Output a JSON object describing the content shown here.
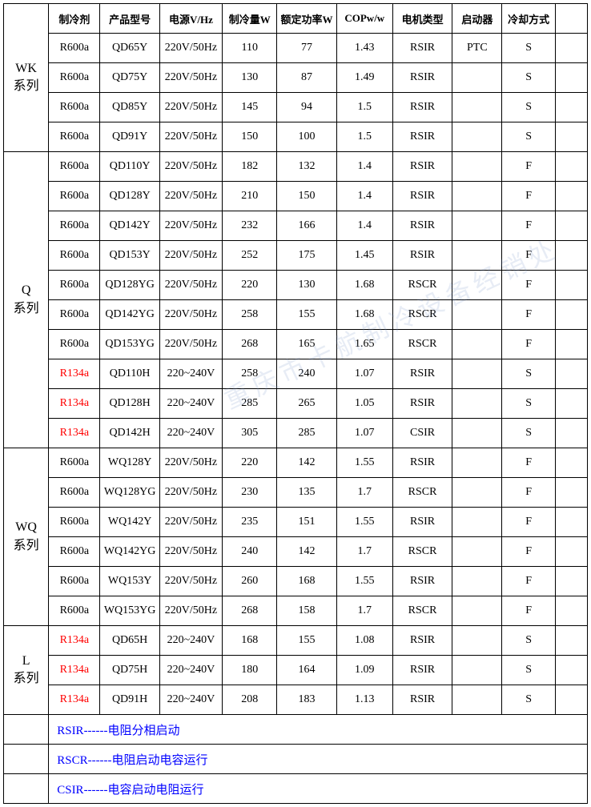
{
  "watermark": "重庆市卡航制冷设备经销处",
  "headers": [
    "",
    "制冷剂",
    "产品型号",
    "电源V/Hz",
    "制冷量W",
    "额定功率W",
    "COPw/w",
    "电机类型",
    "启动器",
    "冷却方式",
    ""
  ],
  "colors": {
    "r134a": "#ff0000",
    "legend": "#0000ff"
  },
  "groups": [
    {
      "series": "WK\n系列",
      "span": 5,
      "header_in_group": true,
      "rows": [
        {
          "refrig": "R600a",
          "model": "QD65Y",
          "power": "220V/50Hz",
          "cap": "110",
          "rated": "77",
          "cop": "1.43",
          "motor": "RSIR",
          "starter": "PTC",
          "cool": "S"
        },
        {
          "refrig": "R600a",
          "model": "QD75Y",
          "power": "220V/50Hz",
          "cap": "130",
          "rated": "87",
          "cop": "1.49",
          "motor": "RSIR",
          "starter": "",
          "cool": "S"
        },
        {
          "refrig": "R600a",
          "model": "QD85Y",
          "power": "220V/50Hz",
          "cap": "145",
          "rated": "94",
          "cop": "1.5",
          "motor": "RSIR",
          "starter": "",
          "cool": "S"
        },
        {
          "refrig": "R600a",
          "model": "QD91Y",
          "power": "220V/50Hz",
          "cap": "150",
          "rated": "100",
          "cop": "1.5",
          "motor": "RSIR",
          "starter": "",
          "cool": "S"
        }
      ]
    },
    {
      "series": "Q\n系列",
      "span": 10,
      "header_in_group": false,
      "rows": [
        {
          "refrig": "R600a",
          "model": "QD110Y",
          "power": "220V/50Hz",
          "cap": "182",
          "rated": "132",
          "cop": "1.4",
          "motor": "RSIR",
          "starter": "",
          "cool": "F"
        },
        {
          "refrig": "R600a",
          "model": "QD128Y",
          "power": "220V/50Hz",
          "cap": "210",
          "rated": "150",
          "cop": "1.4",
          "motor": "RSIR",
          "starter": "",
          "cool": "F"
        },
        {
          "refrig": "R600a",
          "model": "QD142Y",
          "power": "220V/50Hz",
          "cap": "232",
          "rated": "166",
          "cop": "1.4",
          "motor": "RSIR",
          "starter": "",
          "cool": "F"
        },
        {
          "refrig": "R600a",
          "model": "QD153Y",
          "power": "220V/50Hz",
          "cap": "252",
          "rated": "175",
          "cop": "1.45",
          "motor": "RSIR",
          "starter": "",
          "cool": "F"
        },
        {
          "refrig": "R600a",
          "model": "QD128YG",
          "power": "220V/50Hz",
          "cap": "220",
          "rated": "130",
          "cop": "1.68",
          "motor": "RSCR",
          "starter": "",
          "cool": "F"
        },
        {
          "refrig": "R600a",
          "model": "QD142YG",
          "power": "220V/50Hz",
          "cap": "258",
          "rated": "155",
          "cop": "1.68",
          "motor": "RSCR",
          "starter": "",
          "cool": "F"
        },
        {
          "refrig": "R600a",
          "model": "QD153YG",
          "power": "220V/50Hz",
          "cap": "268",
          "rated": "165",
          "cop": "1.65",
          "motor": "RSCR",
          "starter": "",
          "cool": "F"
        },
        {
          "refrig": "R134a",
          "model": "QD110H",
          "power": "220~240V",
          "cap": "258",
          "rated": "240",
          "cop": "1.07",
          "motor": "RSIR",
          "starter": "",
          "cool": "S",
          "red": true
        },
        {
          "refrig": "R134a",
          "model": "QD128H",
          "power": "220~240V",
          "cap": "285",
          "rated": "265",
          "cop": "1.05",
          "motor": "RSIR",
          "starter": "",
          "cool": "S",
          "red": true
        },
        {
          "refrig": "R134a",
          "model": "QD142H",
          "power": "220~240V",
          "cap": "305",
          "rated": "285",
          "cop": "1.07",
          "motor": "CSIR",
          "starter": "",
          "cool": "S",
          "red": true
        }
      ]
    },
    {
      "series": "WQ\n系列",
      "span": 6,
      "header_in_group": false,
      "rows": [
        {
          "refrig": "R600a",
          "model": "WQ128Y",
          "power": "220V/50Hz",
          "cap": "220",
          "rated": "142",
          "cop": "1.55",
          "motor": "RSIR",
          "starter": "",
          "cool": "F"
        },
        {
          "refrig": "R600a",
          "model": "WQ128YG",
          "power": "220V/50Hz",
          "cap": "230",
          "rated": "135",
          "cop": "1.7",
          "motor": "RSCR",
          "starter": "",
          "cool": "F"
        },
        {
          "refrig": "R600a",
          "model": "WQ142Y",
          "power": "220V/50Hz",
          "cap": "235",
          "rated": "151",
          "cop": "1.55",
          "motor": "RSIR",
          "starter": "",
          "cool": "F"
        },
        {
          "refrig": "R600a",
          "model": "WQ142YG",
          "power": "220V/50Hz",
          "cap": "240",
          "rated": "142",
          "cop": "1.7",
          "motor": "RSCR",
          "starter": "",
          "cool": "F"
        },
        {
          "refrig": "R600a",
          "model": "WQ153Y",
          "power": "220V/50Hz",
          "cap": "260",
          "rated": "168",
          "cop": "1.55",
          "motor": "RSIR",
          "starter": "",
          "cool": "F"
        },
        {
          "refrig": "R600a",
          "model": "WQ153YG",
          "power": "220V/50Hz",
          "cap": "268",
          "rated": "158",
          "cop": "1.7",
          "motor": "RSCR",
          "starter": "",
          "cool": "F"
        }
      ]
    },
    {
      "series": "L\n系列",
      "span": 3,
      "header_in_group": false,
      "rows": [
        {
          "refrig": "R134a",
          "model": "QD65H",
          "power": "220~240V",
          "cap": "168",
          "rated": "155",
          "cop": "1.08",
          "motor": "RSIR",
          "starter": "",
          "cool": "S",
          "red": true
        },
        {
          "refrig": "R134a",
          "model": "QD75H",
          "power": "220~240V",
          "cap": "180",
          "rated": "164",
          "cop": "1.09",
          "motor": "RSIR",
          "starter": "",
          "cool": "S",
          "red": true
        },
        {
          "refrig": "R134a",
          "model": "QD91H",
          "power": "220~240V",
          "cap": "208",
          "rated": "183",
          "cop": "1.13",
          "motor": "RSIR",
          "starter": "",
          "cool": "S",
          "red": true
        }
      ]
    }
  ],
  "legends": [
    "RSIR------电阻分相启动",
    "RSCR------电阻启动电容运行",
    "CSIR------电容启动电阻运行"
  ]
}
